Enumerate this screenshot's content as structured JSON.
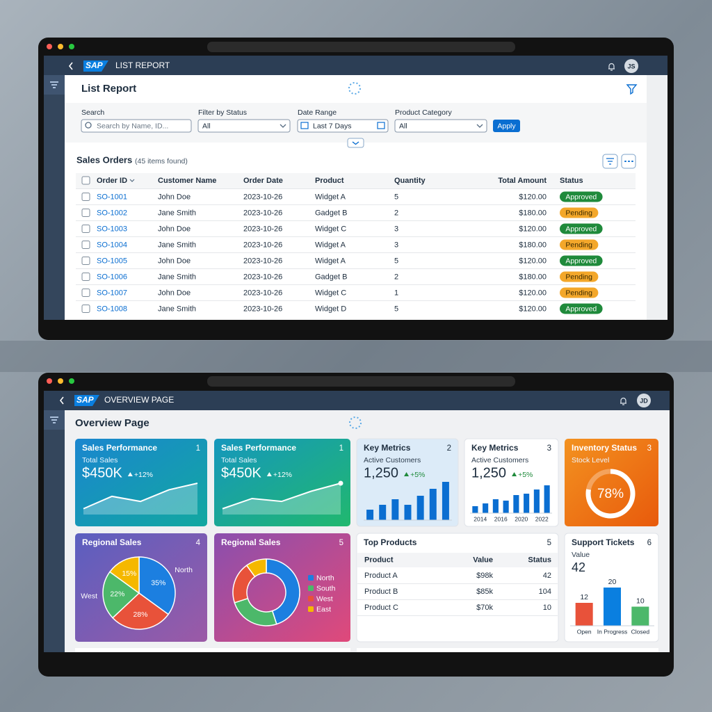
{
  "list_report": {
    "logo": "SAP",
    "app_title": "LIST REPORT",
    "avatar": "JS",
    "title": "List Report",
    "filters": [
      {
        "label": "Search",
        "value": "Search by Name, ID..."
      },
      {
        "label": "Filter by Status",
        "value": "All"
      },
      {
        "label": "Date Range",
        "value": "Last 7 Days"
      },
      {
        "label": "Product Category",
        "value": "All"
      }
    ],
    "apply": "Apply",
    "table": {
      "title": "Sales Orders",
      "count": "(45 items found)",
      "columns": [
        "Order ID",
        "Customer Name",
        "Order Date",
        "Product",
        "Quantity",
        "Total Amount",
        "Status"
      ],
      "rows": [
        [
          "SO-1001",
          "John Doe",
          "2023-10-26",
          "Widget A",
          5,
          "$120.00",
          "Approved"
        ],
        [
          "SO-1002",
          "Jane Smith",
          "2023-10-26",
          "Gadget B",
          2,
          "$180.00",
          "Pending"
        ],
        [
          "SO-1003",
          "John Doe",
          "2023-10-26",
          "Widget C",
          3,
          "$120.00",
          "Approved"
        ],
        [
          "SO-1004",
          "Jane Smith",
          "2023-10-26",
          "Widget A",
          3,
          "$180.00",
          "Pending"
        ],
        [
          "SO-1005",
          "John Doe",
          "2023-10-26",
          "Widget A",
          5,
          "$120.00",
          "Approved"
        ],
        [
          "SO-1006",
          "Jane Smith",
          "2023-10-26",
          "Gadget B",
          2,
          "$180.00",
          "Pending"
        ],
        [
          "SO-1007",
          "John Doe",
          "2023-10-26",
          "Widget C",
          1,
          "$120.00",
          "Pending"
        ],
        [
          "SO-1008",
          "Jane Smith",
          "2023-10-26",
          "Widget D",
          5,
          "$120.00",
          "Approved"
        ]
      ],
      "status_colors": {
        "Approved": {
          "fill": "#1f8a3b",
          "text": "#ffffff"
        },
        "Pending": {
          "fill": "#f3a72a",
          "text": "#3a2a00"
        }
      }
    }
  },
  "overview": {
    "logo": "SAP",
    "app_title": "OVERVIEW PAGE",
    "avatar": "JD",
    "title": "Overview Page",
    "cards": [
      {
        "title": "Sales Performance",
        "number": 1,
        "subtitle": "Total Sales",
        "value": "$450K",
        "delta": "+12%",
        "chart": {
          "type": "line",
          "values": [
            8,
            25,
            18,
            34,
            43
          ],
          "color": "#ffffff"
        }
      },
      {
        "title": "Sales Performance",
        "number": 1,
        "subtitle": "Total Sales",
        "value": "$450K",
        "delta": "+12%",
        "chart": {
          "type": "line",
          "values": [
            8,
            22,
            18,
            32,
            43
          ],
          "color": "#ffffff"
        }
      },
      {
        "title": "Key Metrics",
        "number": 2,
        "subtitle": "Active Customers",
        "value": "1,250",
        "delta": "+5%",
        "chart": {
          "type": "bar",
          "values": [
            15,
            22,
            30,
            22,
            35,
            45,
            55
          ],
          "color": "#0a6ed1"
        }
      },
      {
        "title": "Key Metrics",
        "number": 3,
        "subtitle": "Active Customers",
        "value": "1,250",
        "delta": "+5%",
        "chart": {
          "type": "bar",
          "categories": [
            "2014",
            null,
            "2016",
            null,
            "2020",
            null,
            "2022",
            null
          ],
          "values": [
            10,
            14,
            20,
            18,
            26,
            28,
            34,
            40
          ],
          "color": "#0a6ed1"
        }
      },
      {
        "title": "Inventory Status",
        "number": 3,
        "subtitle": "Stock Level",
        "chart": {
          "type": "gauge",
          "value": 78,
          "value_label": "78%",
          "color": "#ffffff"
        }
      },
      {
        "title": "Regional Sales",
        "number": 4,
        "chart": {
          "type": "pie",
          "categories": [
            "North",
            null,
            "West",
            null
          ],
          "values": [
            35,
            28,
            22,
            15
          ],
          "value_labels": [
            "35%",
            "28%",
            "22%",
            "15%"
          ],
          "colors": [
            "#1c7fe0",
            "#e8523a",
            "#4cb86a",
            "#f5b800"
          ]
        }
      },
      {
        "title": "Regional Sales",
        "number": 5,
        "chart": {
          "type": "donut",
          "categories": [
            "North",
            "South",
            "West",
            "East"
          ],
          "values": [
            45,
            25,
            20,
            10
          ],
          "colors": [
            "#1c7fe0",
            "#4cb86a",
            "#e8523a",
            "#f5b800"
          ],
          "legend": "right"
        }
      },
      {
        "title": "Top Products",
        "number": 5,
        "chart": {
          "type": "table",
          "columns": [
            "Product",
            "Value",
            "Status"
          ],
          "rows": [
            [
              "Product A",
              "$98k",
              42
            ],
            [
              "Product B",
              "$85k",
              104
            ],
            [
              "Product C",
              "$70k",
              10
            ]
          ]
        }
      },
      {
        "title": "Support Tickets",
        "number": 6,
        "subtitle": "Value",
        "value": 42,
        "chart": {
          "type": "bar",
          "categories": [
            "Open",
            "In Progress",
            "Closed"
          ],
          "values": [
            12,
            20,
            10
          ],
          "colors": [
            "#e8523a",
            "#0a7fe0",
            "#4cb86a"
          ],
          "data_labels": true
        }
      }
    ]
  }
}
